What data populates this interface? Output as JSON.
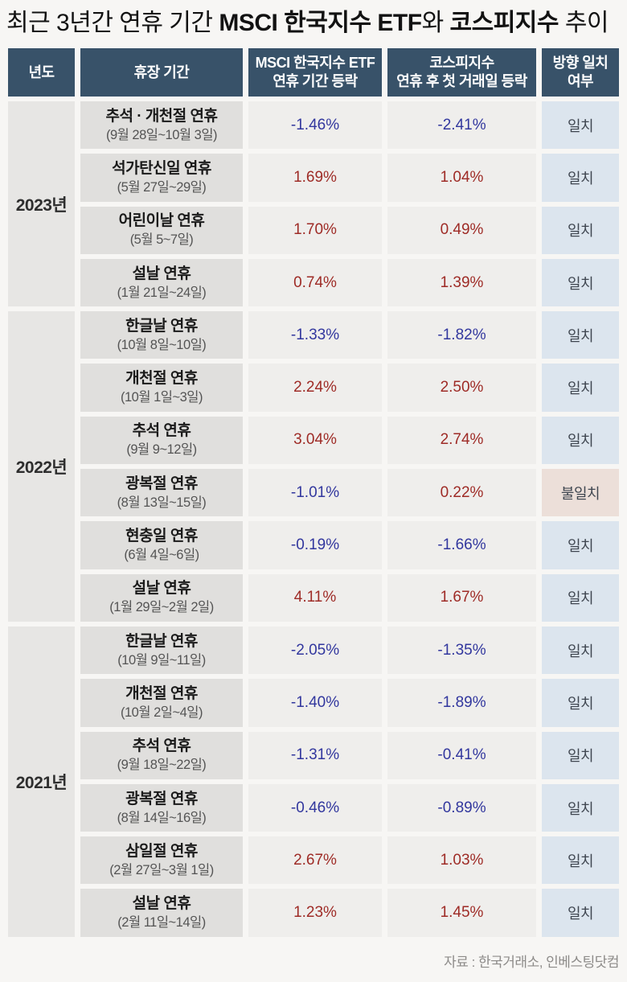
{
  "title": {
    "segments": [
      {
        "text": "최근 3년간 연휴 기간 ",
        "bold": false
      },
      {
        "text": "MSCI 한국지수 ETF",
        "bold": true
      },
      {
        "text": "와 ",
        "bold": false
      },
      {
        "text": "코스피지수",
        "bold": true
      },
      {
        "text": " 추이",
        "bold": false
      }
    ]
  },
  "table": {
    "headers": {
      "year": "년도",
      "period": "휴장 기간",
      "msci_line1": "MSCI 한국지수 ETF",
      "msci_line2": "연휴 기간 등락",
      "kospi_line1": "코스피지수",
      "kospi_line2": "연휴 후 첫 거래일 등락",
      "match_line1": "방향 일치",
      "match_line2": "여부"
    },
    "groups": [
      {
        "year": "2023년",
        "rows": [
          {
            "holiday": "추석 · 개천절 연휴",
            "dates": "(9월 28일~10월 3일)",
            "msci": "-1.46%",
            "kospi": "-2.41%",
            "match": "일치"
          },
          {
            "holiday": "석가탄신일 연휴",
            "dates": "(5월 27일~29일)",
            "msci": "1.69%",
            "kospi": "1.04%",
            "match": "일치"
          },
          {
            "holiday": "어린이날 연휴",
            "dates": "(5월 5~7일)",
            "msci": "1.70%",
            "kospi": "0.49%",
            "match": "일치"
          },
          {
            "holiday": "설날 연휴",
            "dates": "(1월 21일~24일)",
            "msci": "0.74%",
            "kospi": "1.39%",
            "match": "일치"
          }
        ]
      },
      {
        "year": "2022년",
        "rows": [
          {
            "holiday": "한글날 연휴",
            "dates": "(10월 8일~10일)",
            "msci": "-1.33%",
            "kospi": "-1.82%",
            "match": "일치"
          },
          {
            "holiday": "개천절 연휴",
            "dates": "(10월 1일~3일)",
            "msci": "2.24%",
            "kospi": "2.50%",
            "match": "일치"
          },
          {
            "holiday": "추석 연휴",
            "dates": "(9월 9~12일)",
            "msci": "3.04%",
            "kospi": "2.74%",
            "match": "일치"
          },
          {
            "holiday": "광복절 연휴",
            "dates": "(8월 13일~15일)",
            "msci": "-1.01%",
            "kospi": "0.22%",
            "match": "불일치"
          },
          {
            "holiday": "현충일 연휴",
            "dates": "(6월 4일~6일)",
            "msci": "-0.19%",
            "kospi": "-1.66%",
            "match": "일치"
          },
          {
            "holiday": "설날 연휴",
            "dates": "(1월 29일~2월 2일)",
            "msci": "4.11%",
            "kospi": "1.67%",
            "match": "일치"
          }
        ]
      },
      {
        "year": "2021년",
        "rows": [
          {
            "holiday": "한글날 연휴",
            "dates": "(10월 9일~11일)",
            "msci": "-2.05%",
            "kospi": "-1.35%",
            "match": "일치"
          },
          {
            "holiday": "개천절 연휴",
            "dates": "(10월 2일~4일)",
            "msci": "-1.40%",
            "kospi": "-1.89%",
            "match": "일치"
          },
          {
            "holiday": "추석 연휴",
            "dates": "(9월 18일~22일)",
            "msci": "-1.31%",
            "kospi": "-0.41%",
            "match": "일치"
          },
          {
            "holiday": "광복절 연휴",
            "dates": "(8월 14일~16일)",
            "msci": "-0.46%",
            "kospi": "-0.89%",
            "match": "일치"
          },
          {
            "holiday": "삼일절 연휴",
            "dates": "(2월 27일~3월 1일)",
            "msci": "2.67%",
            "kospi": "1.03%",
            "match": "일치"
          },
          {
            "holiday": "설날 연휴",
            "dates": "(2월 11일~14일)",
            "msci": "1.23%",
            "kospi": "1.45%",
            "match": "일치"
          }
        ]
      }
    ]
  },
  "footer": {
    "source": "자료 : 한국거래소, 인베스팅닷컴"
  },
  "colors": {
    "header_bg": "#385269",
    "header_text": "#ffffff",
    "year_bg": "#e7e6e4",
    "holiday_bg": "#e0dfdd",
    "value_bg": "#efeeec",
    "match_bg": "#dce5ee",
    "mismatch_bg": "#ecdfd9",
    "negative_value": "#32379e",
    "positive_value": "#9e2b26"
  },
  "chart_data": {
    "type": "table",
    "title": "최근 3년간 연휴 기간 MSCI 한국지수 ETF와 코스피지수 추이",
    "columns": [
      "년도",
      "휴장 기간",
      "MSCI 한국지수 ETF 연휴 기간 등락",
      "코스피지수 연휴 후 첫 거래일 등락",
      "방향 일치 여부"
    ],
    "units": "%",
    "rows": [
      [
        "2023년",
        "추석 · 개천절 연휴 (9월 28일~10월 3일)",
        -1.46,
        -2.41,
        "일치"
      ],
      [
        "2023년",
        "석가탄신일 연휴 (5월 27일~29일)",
        1.69,
        1.04,
        "일치"
      ],
      [
        "2023년",
        "어린이날 연휴 (5월 5~7일)",
        1.7,
        0.49,
        "일치"
      ],
      [
        "2023년",
        "설날 연휴 (1월 21일~24일)",
        0.74,
        1.39,
        "일치"
      ],
      [
        "2022년",
        "한글날 연휴 (10월 8일~10일)",
        -1.33,
        -1.82,
        "일치"
      ],
      [
        "2022년",
        "개천절 연휴 (10월 1일~3일)",
        2.24,
        2.5,
        "일치"
      ],
      [
        "2022년",
        "추석 연휴 (9월 9~12일)",
        3.04,
        2.74,
        "일치"
      ],
      [
        "2022년",
        "광복절 연휴 (8월 13일~15일)",
        -1.01,
        0.22,
        "불일치"
      ],
      [
        "2022년",
        "현충일 연휴 (6월 4일~6일)",
        -0.19,
        -1.66,
        "일치"
      ],
      [
        "2022년",
        "설날 연휴 (1월 29일~2월 2일)",
        4.11,
        1.67,
        "일치"
      ],
      [
        "2021년",
        "한글날 연휴 (10월 9일~11일)",
        -2.05,
        -1.35,
        "일치"
      ],
      [
        "2021년",
        "개천절 연휴 (10월 2일~4일)",
        -1.4,
        -1.89,
        "일치"
      ],
      [
        "2021년",
        "추석 연휴 (9월 18일~22일)",
        -1.31,
        -0.41,
        "일치"
      ],
      [
        "2021년",
        "광복절 연휴 (8월 14일~16일)",
        -0.46,
        -0.89,
        "일치"
      ],
      [
        "2021년",
        "삼일절 연휴 (2월 27일~3월 1일)",
        2.67,
        1.03,
        "일치"
      ],
      [
        "2021년",
        "설날 연휴 (2월 11일~14일)",
        1.23,
        1.45,
        "일치"
      ]
    ],
    "source": "자료 : 한국거래소, 인베스팅닷컴"
  }
}
